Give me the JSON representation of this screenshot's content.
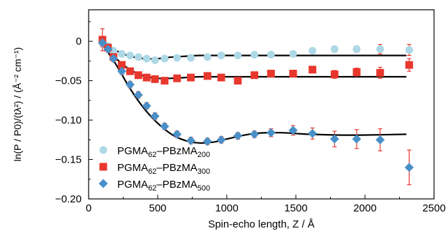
{
  "chart_data": {
    "type": "scatter",
    "xlabel": "Spin-echo length, Z / Å",
    "ylabel": "ln(P / P0)/(tλ²) / (Å⁻² cm⁻¹)",
    "xlim": [
      0,
      2500
    ],
    "ylim": [
      -0.2,
      0.04
    ],
    "xticks": [
      0,
      500,
      1000,
      1500,
      2000,
      2500
    ],
    "yticks": [
      0,
      -0.05,
      -0.1,
      -0.15,
      -0.2
    ],
    "yticklabels": [
      "0",
      "−0.05",
      "−0.10",
      "−0.15",
      "−0.20"
    ],
    "legend_position": "bottom-left",
    "series": [
      {
        "name": "PGMA62–PBzMA200",
        "legend_parts": [
          [
            "PGMA",
            false
          ],
          [
            "62",
            true
          ],
          [
            "–PBzMA",
            false
          ],
          [
            "200",
            true
          ]
        ],
        "marker": "circle",
        "color": "#add8e6",
        "x": [
          100,
          140,
          180,
          240,
          300,
          360,
          420,
          480,
          550,
          640,
          740,
          860,
          960,
          1080,
          1200,
          1320,
          1480,
          1620,
          1780,
          1940,
          2110,
          2320
        ],
        "y": [
          -0.002,
          -0.006,
          -0.012,
          -0.016,
          -0.018,
          -0.02,
          -0.022,
          -0.024,
          -0.022,
          -0.021,
          -0.021,
          -0.02,
          -0.018,
          -0.018,
          -0.017,
          -0.017,
          -0.016,
          -0.012,
          -0.01,
          -0.01,
          -0.01,
          -0.011
        ],
        "yerr": [
          0.004,
          0.003,
          0.003,
          0.003,
          0.003,
          0.003,
          0.003,
          0.003,
          0.003,
          0.003,
          0.003,
          0.003,
          0.003,
          0.003,
          0.003,
          0.003,
          0.003,
          0.003,
          0.004,
          0.004,
          0.006,
          0.007
        ]
      },
      {
        "name": "PGMA62–PBzMA300",
        "legend_parts": [
          [
            "PGMA",
            false
          ],
          [
            "62",
            true
          ],
          [
            "–PBzMA",
            false
          ],
          [
            "300",
            true
          ]
        ],
        "marker": "square",
        "color": "#e8372d",
        "x": [
          100,
          140,
          180,
          240,
          300,
          360,
          420,
          480,
          550,
          640,
          740,
          860,
          960,
          1080,
          1200,
          1320,
          1480,
          1620,
          1780,
          1940,
          2110,
          2320
        ],
        "y": [
          0.002,
          -0.008,
          -0.02,
          -0.03,
          -0.038,
          -0.043,
          -0.046,
          -0.048,
          -0.05,
          -0.047,
          -0.046,
          -0.044,
          -0.046,
          -0.05,
          -0.043,
          -0.041,
          -0.041,
          -0.036,
          -0.042,
          -0.039,
          -0.04,
          -0.03
        ],
        "yerr": [
          0.014,
          0.005,
          0.004,
          0.004,
          0.004,
          0.004,
          0.004,
          0.004,
          0.004,
          0.004,
          0.004,
          0.004,
          0.004,
          0.004,
          0.004,
          0.004,
          0.004,
          0.004,
          0.005,
          0.005,
          0.007,
          0.008
        ]
      },
      {
        "name": "PGMA62–PBzMA500",
        "legend_parts": [
          [
            "PGMA",
            false
          ],
          [
            "62",
            true
          ],
          [
            "–PBzMA",
            false
          ],
          [
            "500",
            true
          ]
        ],
        "marker": "diamond",
        "color": "#4a90c8",
        "x": [
          100,
          140,
          180,
          240,
          300,
          360,
          420,
          480,
          550,
          640,
          740,
          860,
          960,
          1080,
          1200,
          1320,
          1480,
          1620,
          1780,
          1940,
          2110,
          2320
        ],
        "y": [
          -0.002,
          -0.01,
          -0.022,
          -0.038,
          -0.055,
          -0.068,
          -0.082,
          -0.095,
          -0.108,
          -0.118,
          -0.126,
          -0.127,
          -0.125,
          -0.12,
          -0.118,
          -0.116,
          -0.113,
          -0.117,
          -0.124,
          -0.124,
          -0.125,
          -0.16
        ],
        "yerr": [
          0.005,
          0.004,
          0.004,
          0.004,
          0.004,
          0.004,
          0.004,
          0.004,
          0.004,
          0.004,
          0.004,
          0.004,
          0.004,
          0.004,
          0.004,
          0.005,
          0.006,
          0.007,
          0.01,
          0.012,
          0.014,
          0.022
        ]
      }
    ],
    "fits": [
      {
        "x": [
          100,
          200,
          300,
          400,
          500,
          600,
          700,
          800,
          900,
          1000,
          1200,
          1400,
          1600,
          1800,
          2000,
          2300
        ],
        "y": [
          -0.002,
          -0.012,
          -0.019,
          -0.022,
          -0.022,
          -0.02,
          -0.019,
          -0.018,
          -0.018,
          -0.018,
          -0.018,
          -0.018,
          -0.018,
          -0.018,
          -0.018,
          -0.018
        ]
      },
      {
        "x": [
          100,
          200,
          300,
          400,
          500,
          600,
          700,
          800,
          900,
          1000,
          1200,
          1400,
          1600,
          1800,
          2000,
          2300
        ],
        "y": [
          -0.002,
          -0.022,
          -0.036,
          -0.044,
          -0.047,
          -0.047,
          -0.046,
          -0.045,
          -0.045,
          -0.045,
          -0.045,
          -0.045,
          -0.045,
          -0.045,
          -0.045,
          -0.045
        ]
      },
      {
        "x": [
          100,
          200,
          300,
          400,
          500,
          600,
          700,
          800,
          900,
          1000,
          1100,
          1200,
          1300,
          1400,
          1500,
          1600,
          1800,
          2000,
          2300
        ],
        "y": [
          -0.004,
          -0.03,
          -0.06,
          -0.085,
          -0.104,
          -0.118,
          -0.126,
          -0.129,
          -0.128,
          -0.124,
          -0.12,
          -0.117,
          -0.116,
          -0.116,
          -0.117,
          -0.118,
          -0.119,
          -0.119,
          -0.118
        ]
      }
    ],
    "errorbar_color": "#e8372d"
  }
}
